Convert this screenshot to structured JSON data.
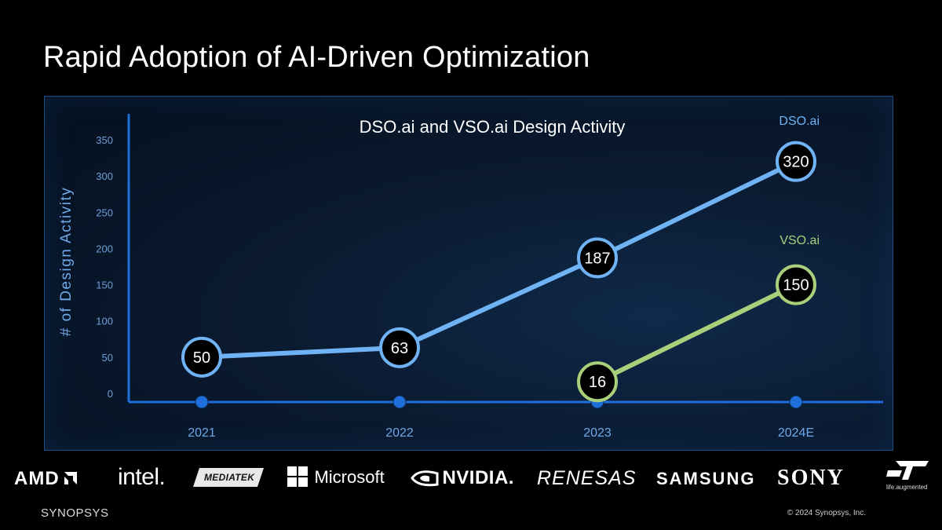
{
  "slide": {
    "title": "Rapid Adoption of AI-Driven Optimization"
  },
  "chart_data": {
    "type": "line",
    "title": "DSO.ai and VSO.ai Design Activity",
    "ylabel": "# of Design Activity",
    "xlabel": "",
    "categories": [
      "2021",
      "2022",
      "2023",
      "2024E"
    ],
    "ylim": [
      0,
      350
    ],
    "yticks": [
      0,
      50,
      100,
      150,
      200,
      250,
      300,
      350
    ],
    "grid": false,
    "series": [
      {
        "name": "DSO.ai",
        "color": "#6fb3f5",
        "values": [
          50,
          63,
          187,
          320
        ]
      },
      {
        "name": "VSO.ai",
        "color": "#a9cf7a",
        "values": [
          null,
          null,
          16,
          150
        ]
      }
    ],
    "colors": {
      "axis": "#1e6fd9",
      "tick_text": "#6f9fd8",
      "cat_text": "#6fa8e8",
      "marker_fill": "#000000"
    }
  },
  "logos": {
    "amd": "AMD",
    "intel": "intel.",
    "mediatek": "MEDIATEK",
    "microsoft": "Microsoft",
    "nvidia": "NVIDIA.",
    "renesas": "RENESAS",
    "samsung": "SAMSUNG",
    "sony": "SONY",
    "st": "ST",
    "st_tagline": "life.augmented"
  },
  "footer": {
    "brand": "SYNOPSYS",
    "copyright": "© 2024 Synopsys, Inc."
  }
}
